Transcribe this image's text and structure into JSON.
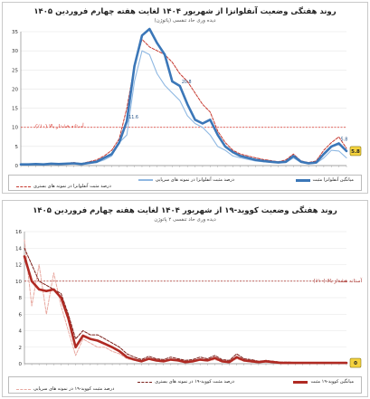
{
  "chart_data": [
    {
      "type": "line",
      "title": "روند  هفتگی وضعیت آنفلوانزا از شهریور ۱۴۰۴ لغایت هفته چهارم فروردین ۱۴۰۵",
      "subtitle": "دیده وری حاد تنفسی (پاتوژن)",
      "ylim": [
        0,
        35
      ],
      "yticks": [
        0,
        5,
        10,
        15,
        20,
        25,
        30,
        35
      ],
      "threshold": {
        "value": 10,
        "label": "آستانه هشدار بالا (۱۰٪)",
        "color": "#d9342b"
      },
      "x": [
        1,
        2,
        3,
        4,
        5,
        6,
        7,
        8,
        9,
        10,
        11,
        12,
        13,
        14,
        15,
        16,
        17,
        18,
        19,
        20,
        21,
        22,
        23,
        24,
        25,
        26,
        27,
        28,
        29,
        30,
        31,
        32,
        33,
        34,
        35,
        36,
        37,
        38,
        39,
        40,
        41,
        42,
        43,
        44
      ],
      "series": [
        {
          "name": "میانگین آنفلوانزا مثبت",
          "color": "#3b77b8",
          "style": "thick",
          "values": [
            0.3,
            0.3,
            0.4,
            0.3,
            0.5,
            0.4,
            0.5,
            0.6,
            0.4,
            0.7,
            1,
            2,
            3,
            6,
            11.6,
            26,
            34,
            35.7,
            32,
            29,
            22,
            20.8,
            16,
            12,
            11,
            12,
            8,
            5,
            3.5,
            2.5,
            2,
            1.5,
            1.2,
            1,
            0.8,
            1,
            2.5,
            1,
            0.6,
            0.8,
            3,
            5,
            5.8,
            3.8
          ]
        },
        {
          "name": "درصد مثبت آنفلوانزا در نمونه های سرپایی",
          "color": "#8fb8e2",
          "style": "solid",
          "values": [
            0.1,
            0.2,
            0.3,
            0.2,
            0.4,
            0.3,
            0.4,
            0.5,
            0.3,
            0.5,
            0.8,
            1.5,
            2.5,
            6,
            8,
            22,
            30,
            29,
            24,
            21,
            19,
            17,
            13,
            11,
            10,
            8,
            5,
            4,
            2.5,
            2,
            1.6,
            1.2,
            1,
            0.9,
            0.7,
            0.8,
            2,
            0.8,
            0.5,
            0.6,
            2,
            4,
            3.8,
            2
          ]
        },
        {
          "name": "درصد مثبت آنفلوانزا در نمونه های بستری",
          "color": "#c6392f",
          "style": "dash",
          "values": [
            0.2,
            0.4,
            0.5,
            0.3,
            0.6,
            0.5,
            0.6,
            0.8,
            0.5,
            1,
            1.5,
            2.5,
            4,
            7,
            15,
            26,
            33,
            31,
            30,
            29,
            27,
            24,
            22,
            19,
            16,
            14,
            9,
            6,
            4,
            3,
            2.5,
            2,
            1.6,
            1.3,
            1,
            1.5,
            3,
            1.2,
            0.8,
            1.2,
            4,
            6,
            7.5,
            4.5
          ]
        }
      ],
      "data_labels": [
        "35.7",
        "11.6",
        "20.8",
        "5.8"
      ],
      "end_value": "5.8"
    },
    {
      "type": "line",
      "title": "روند  هفتگی وضعیت کووید-۱۹ از شهریور ۱۴۰۴ لغایت هفته چهارم فروردین ۱۴۰۵",
      "subtitle": "دیده وری حاد تنفسی ۲ پاتوژن",
      "ylim": [
        0,
        16
      ],
      "yticks": [
        0,
        2,
        4,
        6,
        8,
        10,
        12,
        14,
        16
      ],
      "threshold": {
        "value": 10,
        "label": "آستانه هشدار بالا (۱۰٪)",
        "color": "#a8302a"
      },
      "x": [
        1,
        2,
        3,
        4,
        5,
        6,
        7,
        8,
        9,
        10,
        11,
        12,
        13,
        14,
        15,
        16,
        17,
        18,
        19,
        20,
        21,
        22,
        23,
        24,
        25,
        26,
        27,
        28,
        29,
        30,
        31,
        32,
        33,
        34,
        35,
        36,
        37,
        38,
        39,
        40,
        41,
        42,
        43,
        44,
        45
      ],
      "series": [
        {
          "name": "میانگین کووید-۱۹ مثبت",
          "color": "#b02a23",
          "style": "thick",
          "values": [
            13,
            10,
            9,
            8.8,
            9,
            8,
            5.5,
            2,
            3.4,
            3,
            2.8,
            2.4,
            2,
            1.5,
            0.8,
            0.5,
            0.3,
            0.6,
            0.4,
            0.3,
            0.5,
            0.4,
            0.2,
            0.3,
            0.5,
            0.4,
            0.7,
            0.3,
            0.2,
            0.8,
            0.4,
            0.3,
            0.2,
            0.3,
            0.2,
            0.1,
            0.1,
            0.1,
            0.1,
            0.1,
            0.1,
            0.1,
            0.1,
            0.1,
            0.1
          ]
        },
        {
          "name": "درصد مثبت کووید-۱۹ در نمونه های سرپایی",
          "color": "#e8a8a0",
          "style": "dash",
          "values": [
            15,
            7,
            12,
            6,
            11,
            7,
            4,
            1,
            3,
            2.5,
            2,
            2,
            1.5,
            1.2,
            0.6,
            0.4,
            0.2,
            0.5,
            0.3,
            0.2,
            0.4,
            0.3,
            0.1,
            0.2,
            0.4,
            0.3,
            0.5,
            0.2,
            0.1,
            0.6,
            0.3,
            0.2,
            0.1,
            0.2,
            0.1,
            0.1,
            0.05,
            0.05,
            0.05,
            0.05,
            0.05,
            0.05,
            0.05,
            0.05,
            0.05
          ]
        },
        {
          "name": "درصد مثبت کووید-۱۹ در نمونه های بستری",
          "color": "#7a1e19",
          "style": "dash",
          "values": [
            14,
            12,
            10,
            9.5,
            9,
            8.5,
            6,
            3,
            4,
            3.5,
            3.5,
            3,
            2.5,
            2,
            1.2,
            0.8,
            0.5,
            0.9,
            0.6,
            0.5,
            0.8,
            0.6,
            0.4,
            0.5,
            0.8,
            0.6,
            1,
            0.5,
            0.4,
            1.2,
            0.6,
            0.5,
            0.3,
            0.4,
            0.3,
            0.2,
            0.2,
            0.15,
            0.15,
            0.1,
            0.1,
            0.1,
            0.1,
            0.1,
            0.1
          ]
        }
      ],
      "end_value": "0"
    }
  ]
}
